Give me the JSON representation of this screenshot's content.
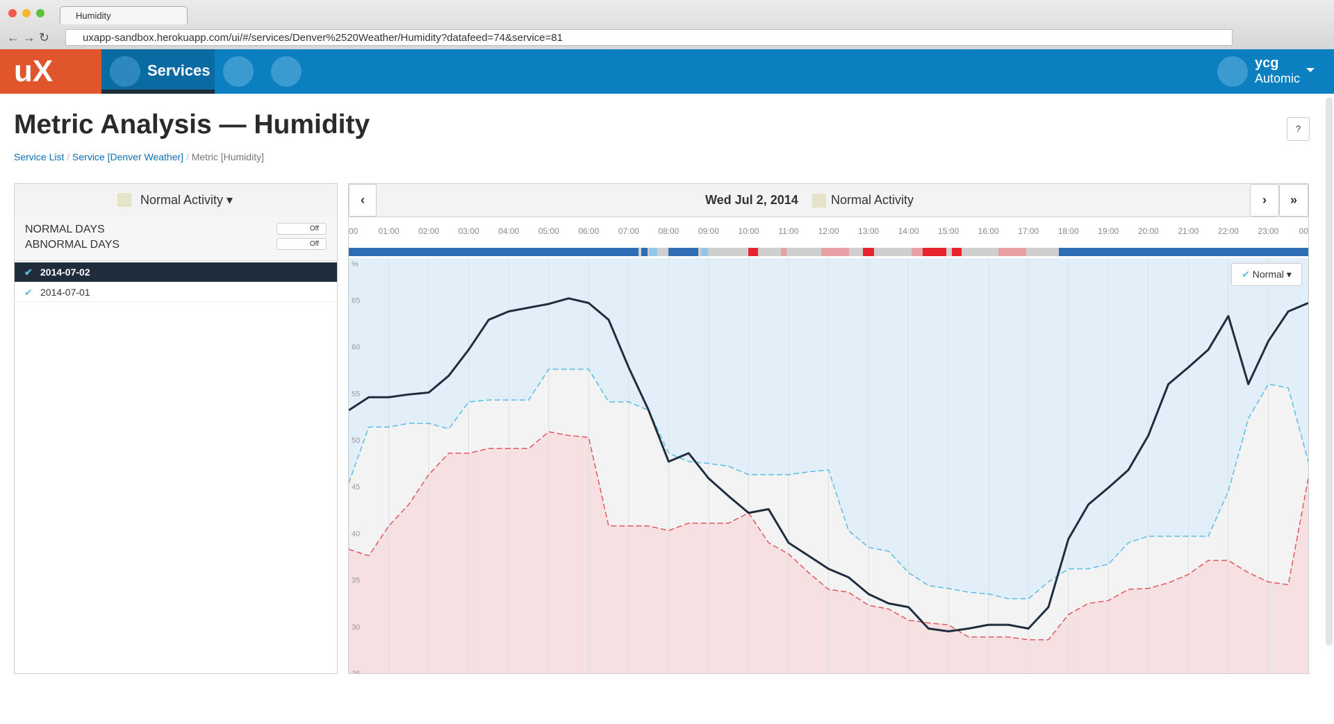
{
  "browser": {
    "tab_title": "Humidity",
    "url": "uxapp-sandbox.herokuapp.com/ui/#/services/Denver%2520Weather/Humidity?datafeed=74&service=81"
  },
  "nav": {
    "logo": "uX",
    "services": "Services",
    "user": "ycg",
    "org": "Automic"
  },
  "header": {
    "title": "Metric Analysis — Humidity",
    "help": "?",
    "breadcrumb": [
      "Service List",
      "Service [Denver Weather]",
      "Metric [Humidity]"
    ]
  },
  "sidebar": {
    "dropdown": "Normal Activity",
    "toggles": [
      {
        "label": "NORMAL DAYS",
        "state": "Off"
      },
      {
        "label": "ABNORMAL DAYS",
        "state": "Off"
      }
    ],
    "days": [
      "2014-07-02",
      "2014-07-01"
    ]
  },
  "chart_controls": {
    "mode": "Normal"
  },
  "chart_data": {
    "type": "line",
    "title": "Wed Jul 2, 2014",
    "legend": "Normal Activity",
    "legend_color": "#e6e4c8",
    "y_label": "%",
    "x": [
      0,
      0.5,
      1,
      1.5,
      2,
      2.5,
      3,
      3.5,
      4,
      4.5,
      5,
      5.5,
      6,
      6.5,
      7,
      7.5,
      8,
      8.5,
      9,
      9.5,
      10,
      10.5,
      11,
      11.5,
      12,
      12.5,
      13,
      13.5,
      14,
      14.5,
      15,
      15.5,
      16,
      16.5,
      17,
      17.5,
      18,
      18.5,
      19,
      19.5,
      20,
      20.5,
      21,
      21.5,
      22,
      22.5,
      23,
      23.5,
      24
    ],
    "xlim": [
      0,
      24
    ],
    "xticks": [
      {
        "value": 0,
        "label": "00"
      },
      {
        "value": 1,
        "label": "01:00"
      },
      {
        "value": 2,
        "label": "02:00"
      },
      {
        "value": 3,
        "label": "03:00"
      },
      {
        "value": 4,
        "label": "04:00"
      },
      {
        "value": 5,
        "label": "05:00"
      },
      {
        "value": 6,
        "label": "06:00"
      },
      {
        "value": 7,
        "label": "07:00"
      },
      {
        "value": 8,
        "label": "08:00"
      },
      {
        "value": 9,
        "label": "09:00"
      },
      {
        "value": 10,
        "label": "10:00"
      },
      {
        "value": 11,
        "label": "11:00"
      },
      {
        "value": 12,
        "label": "12:00"
      },
      {
        "value": 13,
        "label": "13:00"
      },
      {
        "value": 14,
        "label": "14:00"
      },
      {
        "value": 15,
        "label": "15:00"
      },
      {
        "value": 16,
        "label": "16:00"
      },
      {
        "value": 17,
        "label": "17:00"
      },
      {
        "value": 18,
        "label": "18:00"
      },
      {
        "value": 19,
        "label": "19:00"
      },
      {
        "value": 20,
        "label": "20:00"
      },
      {
        "value": 21,
        "label": "21:00"
      },
      {
        "value": 22,
        "label": "22:00"
      },
      {
        "value": 23,
        "label": "23:00"
      },
      {
        "value": 24,
        "label": "00"
      }
    ],
    "ylim": [
      25,
      69.5
    ],
    "yticks": [
      25,
      30,
      35,
      40,
      45,
      50,
      55,
      60,
      65
    ],
    "grid": "x",
    "series": [
      {
        "color": "#5bbde0",
        "style": "dashed",
        "fill": "#f3f3f3",
        "values": [
          45.4,
          51.4,
          51.4,
          51.8,
          51.8,
          51.2,
          54.1,
          54.3,
          54.3,
          54.3,
          57.6,
          57.6,
          57.6,
          54.1,
          54.1,
          53.2,
          48.6,
          47.7,
          47.5,
          47.2,
          46.3,
          46.3,
          46.3,
          46.6,
          46.8,
          40.3,
          38.5,
          38.1,
          35.8,
          34.4,
          34.1,
          33.7,
          33.5,
          33.0,
          33.0,
          34.8,
          36.2,
          36.2,
          36.7,
          39.0,
          39.7,
          39.7,
          39.7,
          39.7,
          44.5,
          52.3,
          56.0,
          55.6,
          47.7
        ]
      },
      {
        "color": "#e0575f",
        "style": "dashed",
        "fill": "#f7e0e1",
        "values": [
          38.3,
          37.6,
          40.8,
          43.1,
          46.3,
          48.6,
          48.6,
          49.1,
          49.1,
          49.1,
          50.9,
          50.5,
          50.3,
          40.8,
          40.8,
          40.8,
          40.3,
          41.1,
          41.1,
          41.1,
          42.2,
          39.0,
          37.8,
          35.8,
          34.0,
          33.7,
          32.3,
          31.9,
          30.7,
          30.4,
          30.2,
          28.9,
          28.9,
          28.9,
          28.6,
          28.6,
          31.3,
          32.5,
          32.8,
          34.0,
          34.1,
          34.7,
          35.6,
          37.1,
          37.1,
          35.8,
          34.8,
          34.5,
          45.9
        ]
      },
      {
        "color": "#1f2d3d",
        "style": "solid",
        "values": [
          53.2,
          54.6,
          54.6,
          54.9,
          55.1,
          56.9,
          59.7,
          62.9,
          63.8,
          64.2,
          64.6,
          65.2,
          64.7,
          62.9,
          57.8,
          53.2,
          47.7,
          48.6,
          45.9,
          44.0,
          42.2,
          42.6,
          39.0,
          37.6,
          36.2,
          35.3,
          33.5,
          32.5,
          32.1,
          29.8,
          29.5,
          29.8,
          30.2,
          30.2,
          29.8,
          32.1,
          39.4,
          43.1,
          44.9,
          46.8,
          50.5,
          56.0,
          57.8,
          59.7,
          63.3,
          56.0,
          60.6,
          63.8,
          64.7
        ]
      }
    ]
  }
}
